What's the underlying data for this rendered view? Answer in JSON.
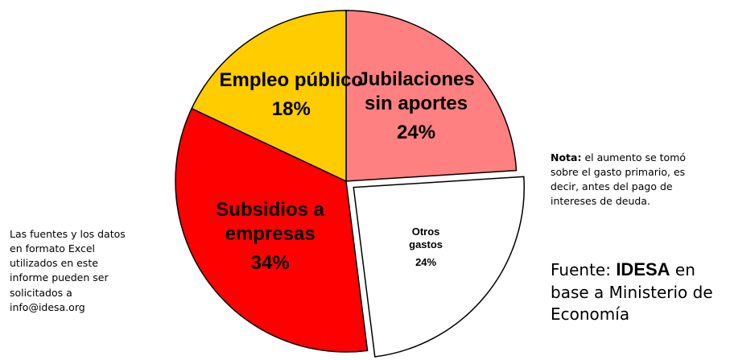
{
  "chart_data": {
    "type": "pie",
    "categories": [
      "Jubilaciones sin aportes",
      "Otros gastos",
      "Subsidios a empresas",
      "Empleo público"
    ],
    "values": [
      24,
      24,
      34,
      18
    ],
    "value_labels": [
      "24%",
      "24%",
      "34%",
      "18%"
    ],
    "colors": [
      "#ff8080",
      "#ffffff",
      "#ff0000",
      "#ffcc00"
    ],
    "exploded": [
      false,
      true,
      false,
      false
    ]
  },
  "annotations": {
    "note_label": "Nota:",
    "note_text": "el aumento se tomó sobre el gasto primario, es decir, antes del pago de intereses de deuda.",
    "source_prefix": "Fuente:",
    "source_org": "IDESA",
    "source_rest": "en base a Ministerio de Economía",
    "contact": "Las fuentes y los datos en formato Excel utilizados en este informe pueden ser solicitados a info@idesa.org"
  }
}
